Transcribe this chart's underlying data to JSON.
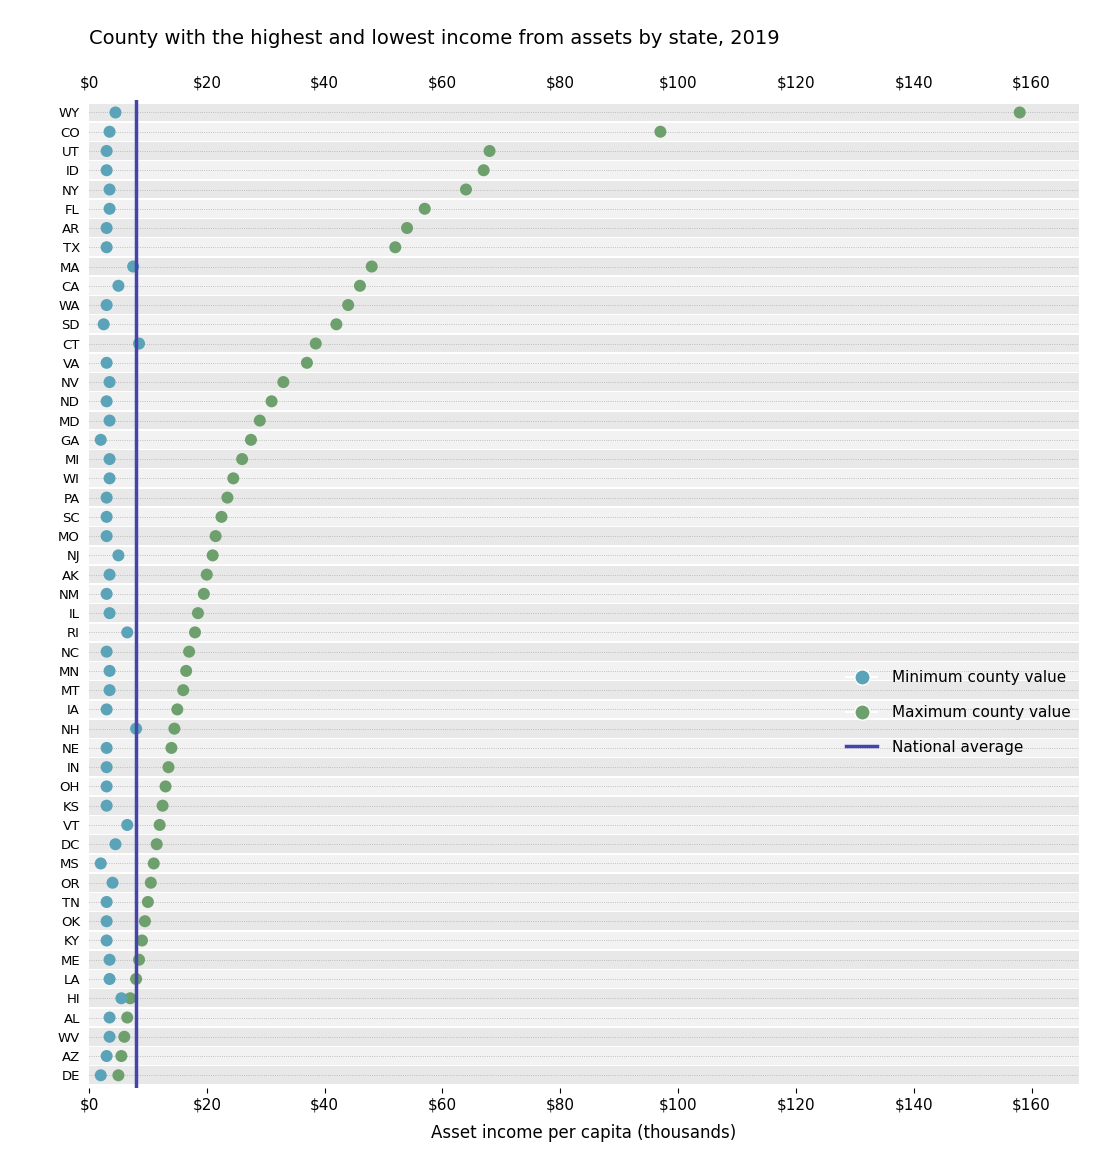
{
  "title": "County with the highest and lowest income from assets by state, 2019",
  "xlabel": "Asset income per capita (thousands)",
  "national_average": 8.0,
  "xlim": [
    0,
    168
  ],
  "xtick_values": [
    0,
    20,
    40,
    60,
    80,
    100,
    120,
    140,
    160
  ],
  "xtick_labels": [
    "$0",
    "$20",
    "$40",
    "$60",
    "$80",
    "$100",
    "$120",
    "$140",
    "$160"
  ],
  "states": [
    "WY",
    "CO",
    "UT",
    "ID",
    "NY",
    "FL",
    "AR",
    "TX",
    "MA",
    "CA",
    "WA",
    "SD",
    "CT",
    "VA",
    "NV",
    "ND",
    "MD",
    "GA",
    "MI",
    "WI",
    "PA",
    "SC",
    "MO",
    "NJ",
    "AK",
    "NM",
    "IL",
    "RI",
    "NC",
    "MN",
    "MT",
    "IA",
    "NH",
    "NE",
    "IN",
    "OH",
    "KS",
    "VT",
    "DC",
    "MS",
    "OR",
    "TN",
    "OK",
    "KY",
    "ME",
    "LA",
    "HI",
    "AL",
    "WV",
    "AZ",
    "DE"
  ],
  "min_values": [
    4.5,
    3.5,
    3.0,
    3.0,
    3.5,
    3.5,
    3.0,
    3.0,
    7.5,
    5.0,
    3.0,
    2.5,
    8.5,
    3.0,
    3.5,
    3.0,
    3.5,
    2.0,
    3.5,
    3.5,
    3.0,
    3.0,
    3.0,
    5.0,
    3.5,
    3.0,
    3.5,
    6.5,
    3.0,
    3.5,
    3.5,
    3.0,
    8.0,
    3.0,
    3.0,
    3.0,
    3.0,
    6.5,
    4.5,
    2.0,
    4.0,
    3.0,
    3.0,
    3.0,
    3.5,
    3.5,
    5.5,
    3.5,
    3.5,
    3.0,
    2.0
  ],
  "max_values": [
    158.0,
    97.0,
    68.0,
    67.0,
    64.0,
    57.0,
    54.0,
    52.0,
    48.0,
    46.0,
    44.0,
    42.0,
    38.5,
    37.0,
    33.0,
    31.0,
    29.0,
    27.5,
    26.0,
    24.5,
    23.5,
    22.5,
    21.5,
    21.0,
    20.0,
    19.5,
    18.5,
    18.0,
    17.0,
    16.5,
    16.0,
    15.0,
    14.5,
    14.0,
    13.5,
    13.0,
    12.5,
    12.0,
    11.5,
    11.0,
    10.5,
    10.0,
    9.5,
    9.0,
    8.5,
    8.0,
    7.0,
    6.5,
    6.0,
    5.5,
    5.0
  ],
  "min_color": "#5ba3b8",
  "max_color": "#6ea06e",
  "national_avg_color": "#4444aa",
  "row_colors_even": "#e8e8e8",
  "row_colors_odd": "#f2f2f2",
  "marker_size": 75,
  "figure_bg": "#ffffff",
  "title_fontsize": 14,
  "tick_fontsize": 11,
  "xlabel_fontsize": 12,
  "legend_fontsize": 11
}
